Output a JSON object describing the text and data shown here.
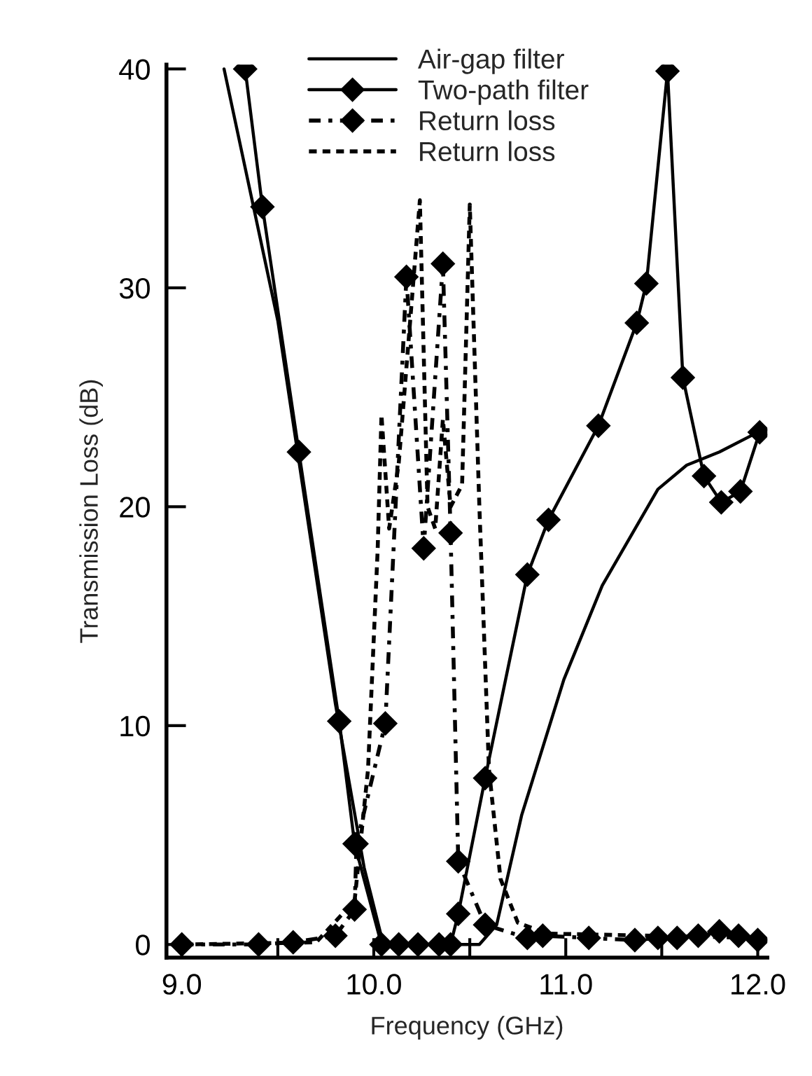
{
  "chart_data": {
    "type": "line",
    "xlabel": "Frequency (GHz)",
    "ylabel": "Transmission Loss (dB)",
    "xlim": [
      8.92,
      12.05
    ],
    "ylim": [
      -0.6,
      40.2
    ],
    "xticks": [
      {
        "value": 9.0,
        "label": "9.0"
      },
      {
        "value": 9.5,
        "label": null
      },
      {
        "value": 10.0,
        "label": "10.0"
      },
      {
        "value": 10.5,
        "label": null
      },
      {
        "value": 11.0,
        "label": "11.0"
      },
      {
        "value": 11.5,
        "label": null
      },
      {
        "value": 12.0,
        "label": "12.0"
      }
    ],
    "yticks": [
      0,
      10,
      20,
      30,
      40
    ],
    "grid": false,
    "legend": "top",
    "series": [
      {
        "name": "Air-gap filter",
        "color": "#000000",
        "marker": "none",
        "line_style": "solid",
        "x": [
          9.22,
          9.5,
          9.8,
          9.95,
          10.05,
          10.3,
          10.55,
          10.64,
          10.77,
          10.99,
          11.19,
          11.48,
          11.63,
          11.8,
          12.0
        ],
        "values": [
          40,
          28.5,
          11,
          3.5,
          0,
          0,
          0,
          0.9,
          5.9,
          12.1,
          16.4,
          20.8,
          21.9,
          22.5,
          23.4
        ]
      },
      {
        "name": "Two-path filter",
        "color": "#000000",
        "marker": "diamond",
        "line_style": "solid",
        "x": [
          9.33,
          9.42,
          9.61,
          9.82,
          9.9,
          10.04,
          10.13,
          10.23,
          10.34,
          10.4,
          10.44,
          10.58,
          10.8,
          10.91,
          11.17,
          11.37,
          11.42,
          11.53,
          11.61,
          11.72,
          11.81,
          11.91,
          12.01
        ],
        "values": [
          40,
          33.7,
          22.5,
          10.2,
          4.6,
          0,
          0,
          0,
          0,
          0,
          1.4,
          7.6,
          16.9,
          19.4,
          23.7,
          28.4,
          30.2,
          39.9,
          25.9,
          21.4,
          20.2,
          20.7,
          23.4
        ]
      },
      {
        "name": "Return loss",
        "color": "#000000",
        "marker": "diamond",
        "line_style": "dashdot",
        "x": [
          9.0,
          9.4,
          9.58,
          9.8,
          9.9,
          9.91,
          10.06,
          10.17,
          10.26,
          10.36,
          10.4,
          10.44,
          10.58,
          10.8,
          10.88,
          11.12,
          11.36,
          11.48,
          11.58,
          11.69,
          11.8,
          11.9,
          12.0
        ],
        "values": [
          0,
          0,
          0.1,
          0.4,
          1.6,
          4.6,
          10.1,
          30.5,
          18.1,
          31.1,
          18.8,
          3.8,
          0.9,
          0.3,
          0.4,
          0.3,
          0.2,
          0.3,
          0.3,
          0.4,
          0.6,
          0.4,
          0.2
        ]
      },
      {
        "name": "Return loss",
        "color": "#000000",
        "marker": "none",
        "line_style": "dotted",
        "x": [
          9.0,
          9.7,
          9.9,
          9.97,
          10.02,
          10.04,
          10.08,
          10.13,
          10.24,
          10.28,
          10.32,
          10.36,
          10.4,
          10.46,
          10.5,
          10.55,
          10.6,
          10.66,
          10.75,
          10.9,
          12.0
        ],
        "values": [
          0,
          0.1,
          2,
          8,
          18,
          24.2,
          19,
          22,
          34,
          20,
          19,
          24,
          20,
          21,
          33.8,
          20,
          8,
          3,
          1,
          0.5,
          0.3
        ]
      }
    ]
  }
}
